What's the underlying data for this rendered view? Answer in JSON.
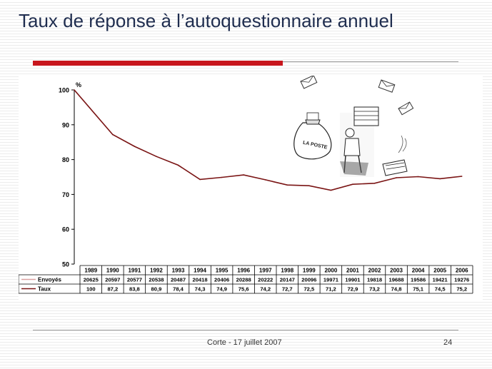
{
  "slide": {
    "title": "Taux de réponse à l’autoquestionnaire annuel",
    "footer": "Corte - 17 juillet 2007",
    "page_number": "24"
  },
  "colors": {
    "title": "#1f2d4f",
    "accent_red": "#c8161d",
    "taux_line": "#7a1414",
    "envoyes_line": "#d9a0a0"
  },
  "chart_data": {
    "type": "line",
    "title": "",
    "xlabel": "",
    "ylabel": "%",
    "ylim": [
      50,
      100
    ],
    "yticks": [
      50,
      60,
      70,
      80,
      90,
      100
    ],
    "grid": false,
    "x": [
      "1989",
      "1990",
      "1991",
      "1992",
      "1993",
      "1994",
      "1995",
      "1996",
      "1997",
      "1998",
      "1999",
      "2000",
      "2001",
      "2002",
      "2003",
      "2004",
      "2005",
      "2006"
    ],
    "series": [
      {
        "name": "Taux",
        "values": [
          100,
          87.2,
          83.8,
          80.9,
          78.4,
          74.3,
          74.9,
          75.6,
          74.2,
          72.7,
          72.5,
          71.2,
          72.9,
          73.2,
          74.8,
          75.1,
          74.5,
          75.2
        ],
        "plotted": true
      },
      {
        "name": "Envoyés",
        "values": [
          20625,
          20597,
          20577,
          20538,
          20487,
          20418,
          20406,
          20288,
          20222,
          20147,
          20096,
          19971,
          19901,
          19818,
          19688,
          19586,
          19421,
          19276
        ],
        "plotted": false
      }
    ],
    "table_rows": [
      {
        "label": "Envoyés",
        "values": [
          "20625",
          "20597",
          "20577",
          "20538",
          "20487",
          "20418",
          "20406",
          "20288",
          "20222",
          "20147",
          "20096",
          "19971",
          "19901",
          "19818",
          "19688",
          "19586",
          "19421",
          "19276"
        ]
      },
      {
        "label": "Taux",
        "values": [
          "100",
          "87,2",
          "83,8",
          "80,9",
          "78,4",
          "74,3",
          "74,9",
          "75,6",
          "74,2",
          "72,7",
          "72,5",
          "71,2",
          "72,9",
          "73,2",
          "74,8",
          "75,1",
          "74,5",
          "75,2"
        ]
      }
    ],
    "illustration": {
      "bag_label": "LA POSTE"
    }
  }
}
